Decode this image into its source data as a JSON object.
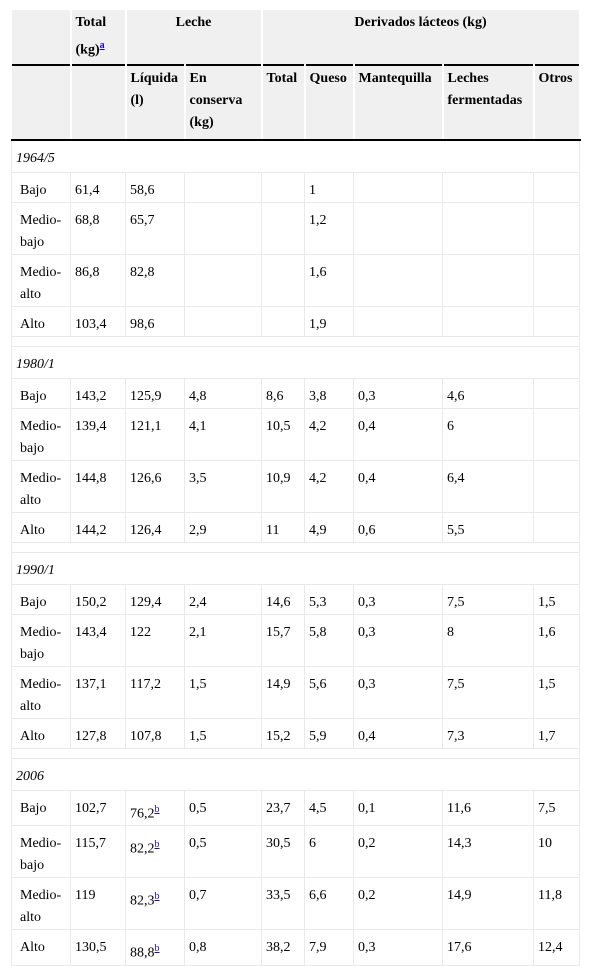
{
  "headers": {
    "total": "Total (kg)",
    "total_note": "a",
    "leche": "Leche",
    "derivados": "Derivados lácteos (kg)",
    "liquida": "Líquida (l)",
    "en_conserva": "En conserva (kg)",
    "der_total": "Total",
    "queso": "Queso",
    "mantequilla": "Mantequilla",
    "leches_fermentadas": "Leches fermentadas",
    "otros": "Otros"
  },
  "groups": [
    {
      "period": "1964/5",
      "rows": [
        {
          "label": "Bajo",
          "total": "61,4",
          "liquida": "58,6",
          "liquida_note": "",
          "conserva": "",
          "der_total": "",
          "queso": "1",
          "mantequilla": "",
          "fermentadas": "",
          "otros": ""
        },
        {
          "label": "Medio-bajo",
          "total": "68,8",
          "liquida": "65,7",
          "liquida_note": "",
          "conserva": "",
          "der_total": "",
          "queso": "1,2",
          "mantequilla": "",
          "fermentadas": "",
          "otros": ""
        },
        {
          "label": "Medio-alto",
          "total": "86,8",
          "liquida": "82,8",
          "liquida_note": "",
          "conserva": "",
          "der_total": "",
          "queso": "1,6",
          "mantequilla": "",
          "fermentadas": "",
          "otros": ""
        },
        {
          "label": "Alto",
          "total": "103,4",
          "liquida": "98,6",
          "liquida_note": "",
          "conserva": "",
          "der_total": "",
          "queso": "1,9",
          "mantequilla": "",
          "fermentadas": "",
          "otros": ""
        }
      ]
    },
    {
      "period": "1980/1",
      "rows": [
        {
          "label": "Bajo",
          "total": "143,2",
          "liquida": "125,9",
          "liquida_note": "",
          "conserva": "4,8",
          "der_total": "8,6",
          "queso": "3,8",
          "mantequilla": "0,3",
          "fermentadas": "4,6",
          "otros": ""
        },
        {
          "label": "Medio-bajo",
          "total": "139,4",
          "liquida": "121,1",
          "liquida_note": "",
          "conserva": "4,1",
          "der_total": "10,5",
          "queso": "4,2",
          "mantequilla": "0,4",
          "fermentadas": "6",
          "otros": ""
        },
        {
          "label": "Medio-alto",
          "total": "144,8",
          "liquida": "126,6",
          "liquida_note": "",
          "conserva": "3,5",
          "der_total": "10,9",
          "queso": "4,2",
          "mantequilla": "0,4",
          "fermentadas": "6,4",
          "otros": ""
        },
        {
          "label": "Alto",
          "total": "144,2",
          "liquida": "126,4",
          "liquida_note": "",
          "conserva": "2,9",
          "der_total": "11",
          "queso": "4,9",
          "mantequilla": "0,6",
          "fermentadas": "5,5",
          "otros": ""
        }
      ]
    },
    {
      "period": "1990/1",
      "rows": [
        {
          "label": "Bajo",
          "total": "150,2",
          "liquida": "129,4",
          "liquida_note": "",
          "conserva": "2,4",
          "der_total": "14,6",
          "queso": "5,3",
          "mantequilla": "0,3",
          "fermentadas": "7,5",
          "otros": "1,5"
        },
        {
          "label": "Medio-bajo",
          "total": "143,4",
          "liquida": "122",
          "liquida_note": "",
          "conserva": "2,1",
          "der_total": "15,7",
          "queso": "5,8",
          "mantequilla": "0,3",
          "fermentadas": "8",
          "otros": "1,6"
        },
        {
          "label": "Medio-alto",
          "total": "137,1",
          "liquida": "117,2",
          "liquida_note": "",
          "conserva": "1,5",
          "der_total": "14,9",
          "queso": "5,6",
          "mantequilla": "0,3",
          "fermentadas": "7,5",
          "otros": "1,5"
        },
        {
          "label": "Alto",
          "total": "127,8",
          "liquida": "107,8",
          "liquida_note": "",
          "conserva": "1,5",
          "der_total": "15,2",
          "queso": "5,9",
          "mantequilla": "0,4",
          "fermentadas": "7,3",
          "otros": "1,7"
        }
      ]
    },
    {
      "period": "2006",
      "rows": [
        {
          "label": "Bajo",
          "total": "102,7",
          "liquida": "76,2",
          "liquida_note": "b",
          "conserva": "0,5",
          "der_total": "23,7",
          "queso": "4,5",
          "mantequilla": "0,1",
          "fermentadas": "11,6",
          "otros": "7,5"
        },
        {
          "label": "Medio-bajo",
          "total": "115,7",
          "liquida": "82,2",
          "liquida_note": "b",
          "conserva": "0,5",
          "der_total": "30,5",
          "queso": "6",
          "mantequilla": "0,2",
          "fermentadas": "14,3",
          "otros": "10"
        },
        {
          "label": "Medio-alto",
          "total": "119",
          "liquida": "82,3",
          "liquida_note": "b",
          "conserva": "0,7",
          "der_total": "33,5",
          "queso": "6,6",
          "mantequilla": "0,2",
          "fermentadas": "14,9",
          "otros": "11,8"
        },
        {
          "label": "Alto",
          "total": "130,5",
          "liquida": "88,8",
          "liquida_note": "b",
          "conserva": "0,8",
          "der_total": "38,2",
          "queso": "7,9",
          "mantequilla": "0,3",
          "fermentadas": "17,6",
          "otros": "12,4"
        }
      ]
    }
  ]
}
